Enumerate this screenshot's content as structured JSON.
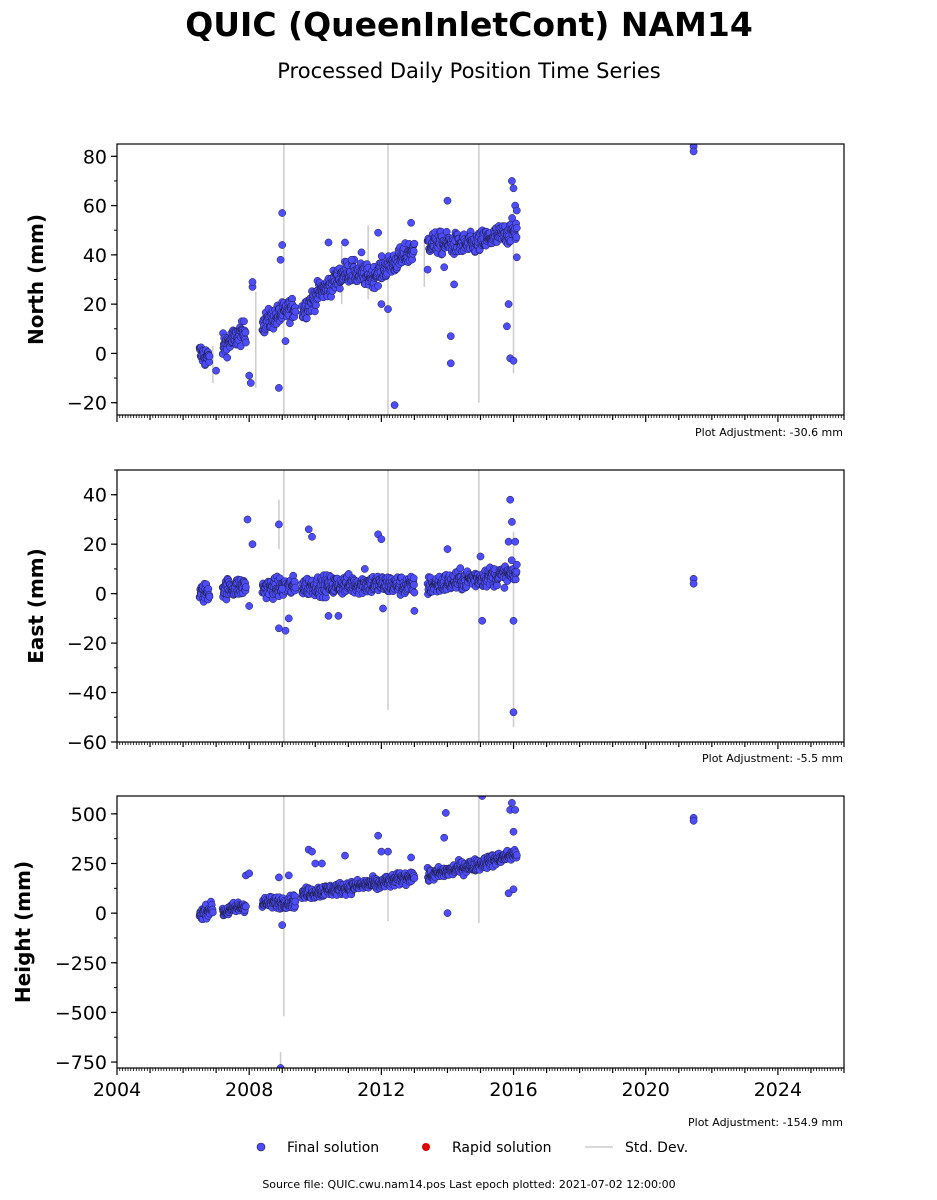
{
  "title": "QUIC (QueenInletCont) NAM14",
  "subtitle": "Processed Daily Position Time Series",
  "source_line": "Source file: QUIC.cwu.nam14.pos  Last epoch plotted: 2021-07-02 12:00:00",
  "legend": {
    "final": "Final solution",
    "rapid": "Rapid solution",
    "std": "Std. Dev."
  },
  "colors": {
    "final": "#4d4dff",
    "rapid": "#e00000",
    "std": "#cccccc",
    "edge": "#1a1a3a"
  },
  "chart_data": [
    {
      "type": "scatter",
      "ylabel": "North (mm)",
      "adjustment_label": "Plot Adjustment: -30.6 mm",
      "xlim": [
        2004,
        2026
      ],
      "ylim": [
        -25,
        85
      ],
      "xticks": [
        2004,
        2008,
        2012,
        2016,
        2020,
        2024
      ],
      "yticks": [
        -20,
        0,
        20,
        40,
        60,
        80
      ],
      "ytick_labels": [
        "−20",
        "0",
        "20",
        "40",
        "60",
        "80"
      ],
      "series": [
        {
          "type": "trend",
          "segments": [
            {
              "x": [
                2006.5,
                2006.8
              ],
              "y": [
                0,
                -2
              ]
            },
            {
              "x": [
                2007.2,
                2007.9
              ],
              "y": [
                3,
                9
              ]
            },
            {
              "x": [
                2008.4,
                2009.4
              ],
              "y": [
                12,
                19
              ]
            },
            {
              "x": [
                2009.6,
                2010.2
              ],
              "y": [
                17,
                26
              ]
            },
            {
              "x": [
                2010.2,
                2011.0
              ],
              "y": [
                25,
                34
              ]
            },
            {
              "x": [
                2011.0,
                2011.8
              ],
              "y": [
                33,
                31
              ]
            },
            {
              "x": [
                2011.8,
                2013.0
              ],
              "y": [
                32,
                42
              ]
            },
            {
              "x": [
                2013.4,
                2014.7
              ],
              "y": [
                45,
                44
              ]
            },
            {
              "x": [
                2014.7,
                2016.1
              ],
              "y": [
                44,
                50
              ]
            }
          ],
          "noise": 3.2
        },
        {
          "type": "outliers",
          "x": [
            2007.0,
            2008.0,
            2008.05,
            2008.1,
            2008.1,
            2008.9,
            2008.95,
            2009.0,
            2009.0,
            2009.1,
            2010.4,
            2010.9,
            2011.1,
            2011.4,
            2011.9,
            2012.0,
            2012.2,
            2012.4,
            2012.9,
            2013.4,
            2013.9,
            2014.0,
            2014.1,
            2014.1,
            2014.2,
            2015.8,
            2015.85,
            2015.9,
            2015.95,
            2016.0,
            2016.0,
            2016.05,
            2016.1,
            2016.1,
            2021.45,
            2021.45
          ],
          "y": [
            -7,
            -9,
            -12,
            27,
            29,
            -14,
            38,
            57,
            44,
            5,
            45,
            45,
            38,
            41,
            49,
            20,
            18,
            -21,
            53,
            34,
            35,
            62,
            7,
            -4,
            28,
            11,
            20,
            -2,
            70,
            -3,
            67,
            60,
            58,
            39,
            84,
            82
          ]
        }
      ],
      "vlines": [
        {
          "x": 2009.05,
          "y0": -25,
          "y1": 85
        },
        {
          "x": 2012.2,
          "y0": -25,
          "y1": 85
        },
        {
          "x": 2014.95,
          "y0": -20,
          "y1": 85
        },
        {
          "x": 2010.8,
          "y0": 20,
          "y1": 44
        },
        {
          "x": 2011.6,
          "y0": 22,
          "y1": 52
        },
        {
          "x": 2013.3,
          "y0": 27,
          "y1": 45
        },
        {
          "x": 2016.0,
          "y0": -8,
          "y1": 60
        },
        {
          "x": 2006.9,
          "y0": -12,
          "y1": 3
        },
        {
          "x": 2008.2,
          "y0": -14,
          "y1": 25
        }
      ]
    },
    {
      "type": "scatter",
      "ylabel": "East (mm)",
      "adjustment_label": "Plot Adjustment: -5.5 mm",
      "xlim": [
        2004,
        2026
      ],
      "ylim": [
        -60,
        50
      ],
      "xticks": [
        2004,
        2008,
        2012,
        2016,
        2020,
        2024
      ],
      "yticks": [
        -60,
        -40,
        -20,
        0,
        20,
        40
      ],
      "ytick_labels": [
        "−60",
        "−40",
        "−20",
        "0",
        "20",
        "40"
      ],
      "series": [
        {
          "type": "trend",
          "segments": [
            {
              "x": [
                2006.5,
                2006.8
              ],
              "y": [
                0,
                1
              ]
            },
            {
              "x": [
                2007.2,
                2007.9
              ],
              "y": [
                2,
                3
              ]
            },
            {
              "x": [
                2008.4,
                2009.4
              ],
              "y": [
                2,
                3
              ]
            },
            {
              "x": [
                2009.6,
                2011.8
              ],
              "y": [
                3,
                4
              ]
            },
            {
              "x": [
                2011.8,
                2013.0
              ],
              "y": [
                4,
                3
              ]
            },
            {
              "x": [
                2013.4,
                2014.7
              ],
              "y": [
                3,
                6
              ]
            },
            {
              "x": [
                2014.7,
                2016.1
              ],
              "y": [
                6,
                8
              ]
            }
          ],
          "noise": 2.8
        },
        {
          "type": "outliers",
          "x": [
            2007.95,
            2008.0,
            2008.1,
            2008.9,
            2008.9,
            2009.0,
            2009.1,
            2009.2,
            2009.8,
            2009.9,
            2010.4,
            2010.7,
            2011.5,
            2011.9,
            2012.0,
            2012.05,
            2013.0,
            2014.0,
            2015.0,
            2015.05,
            2015.85,
            2015.9,
            2015.95,
            2016.0,
            2016.0,
            2016.05,
            2021.45,
            2021.45
          ],
          "y": [
            30,
            -5,
            20,
            28,
            -14,
            2,
            -15,
            -10,
            26,
            23,
            -9,
            -9,
            10,
            24,
            22,
            -6,
            -7,
            18,
            15,
            -11,
            21,
            38,
            29,
            -48,
            -11,
            21,
            6,
            4
          ]
        }
      ],
      "vlines": [
        {
          "x": 2009.05,
          "y0": -60,
          "y1": 50
        },
        {
          "x": 2012.2,
          "y0": -47,
          "y1": 50
        },
        {
          "x": 2014.95,
          "y0": -60,
          "y1": 50
        },
        {
          "x": 2008.9,
          "y0": 18,
          "y1": 38
        },
        {
          "x": 2016.0,
          "y0": -54,
          "y1": 25
        }
      ]
    },
    {
      "type": "scatter",
      "ylabel": "Height (mm)",
      "adjustment_label": "Plot Adjustment: -154.9 mm",
      "xlim": [
        2004,
        2026
      ],
      "ylim": [
        -780,
        590
      ],
      "xticks": [
        2004,
        2008,
        2012,
        2016,
        2020,
        2024
      ],
      "xtick_labels": [
        "2004",
        "2008",
        "2012",
        "2016",
        "2020",
        "2024"
      ],
      "yticks": [
        -750,
        -500,
        -250,
        0,
        250,
        500
      ],
      "ytick_labels": [
        "−750",
        "−500",
        "−250",
        "0",
        "250",
        "500"
      ],
      "series": [
        {
          "type": "trend",
          "segments": [
            {
              "x": [
                2006.5,
                2006.9
              ],
              "y": [
                -5,
                25
              ]
            },
            {
              "x": [
                2007.2,
                2007.9
              ],
              "y": [
                5,
                40
              ]
            },
            {
              "x": [
                2008.4,
                2009.4
              ],
              "y": [
                50,
                60
              ]
            },
            {
              "x": [
                2009.6,
                2011.8
              ],
              "y": [
                95,
                150
              ]
            },
            {
              "x": [
                2011.8,
                2013.0
              ],
              "y": [
                140,
                190
              ]
            },
            {
              "x": [
                2013.4,
                2014.7
              ],
              "y": [
                185,
                240
              ]
            },
            {
              "x": [
                2014.7,
                2016.1
              ],
              "y": [
                235,
                300
              ]
            }
          ],
          "noise": 22
        },
        {
          "type": "outliers",
          "x": [
            2007.9,
            2008.0,
            2008.9,
            2009.0,
            2009.2,
            2009.8,
            2009.9,
            2010.0,
            2010.2,
            2010.9,
            2011.9,
            2012.0,
            2012.2,
            2012.9,
            2013.9,
            2013.95,
            2014.0,
            2015.05,
            2015.85,
            2015.9,
            2015.95,
            2016.0,
            2016.0,
            2016.05,
            2021.45,
            2021.45,
            2008.95
          ],
          "y": [
            190,
            200,
            180,
            -60,
            190,
            320,
            310,
            250,
            250,
            290,
            390,
            310,
            310,
            280,
            380,
            505,
            0,
            590,
            100,
            520,
            555,
            410,
            120,
            520,
            480,
            465,
            -780
          ]
        }
      ],
      "vlines": [
        {
          "x": 2009.05,
          "y0": -520,
          "y1": 590
        },
        {
          "x": 2012.2,
          "y0": -40,
          "y1": 300
        },
        {
          "x": 2014.95,
          "y0": -50,
          "y1": 590
        },
        {
          "x": 2008.95,
          "y0": -780,
          "y1": -700
        }
      ]
    }
  ]
}
